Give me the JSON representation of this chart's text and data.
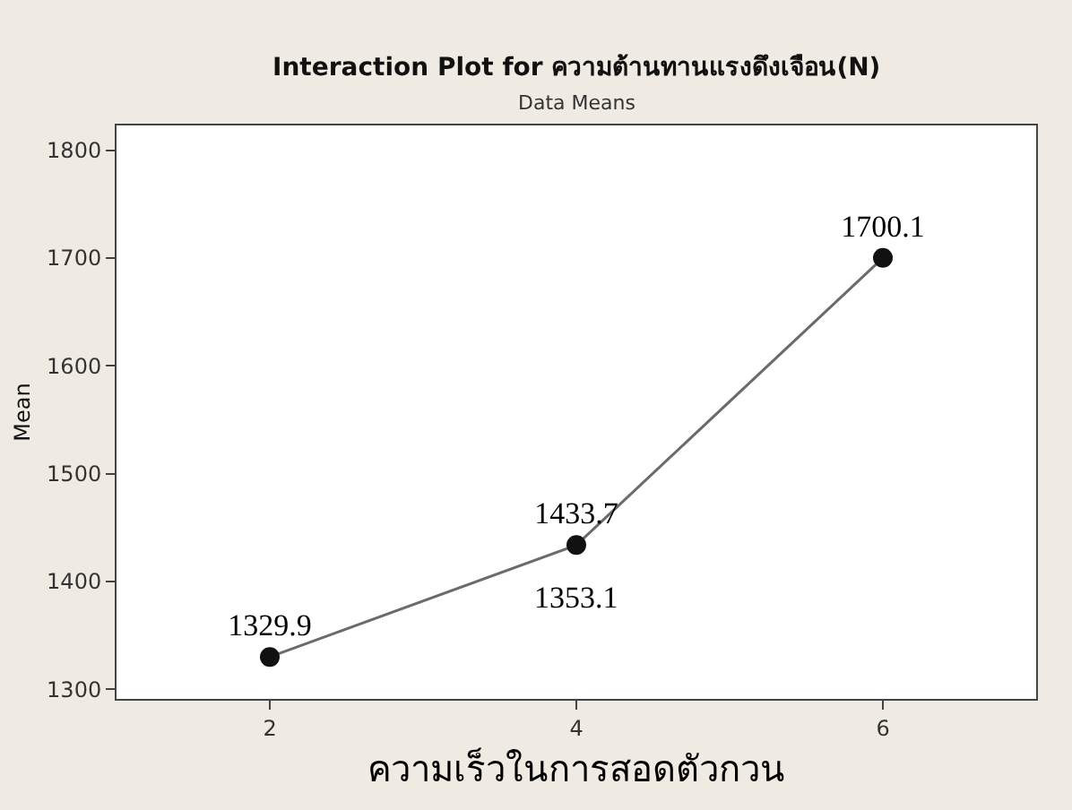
{
  "chart_data": {
    "type": "line",
    "title": "Interaction Plot for ความต้านทานแรงดึงเจือน(N)",
    "subtitle": "Data Means",
    "xlabel": "ความเร็วในการสอดตัวกวน",
    "ylabel": "Mean",
    "x": [
      2,
      4,
      6
    ],
    "series": [
      {
        "color": "#6b6b6b",
        "values": [
          1329.9,
          1433.7,
          1700.1
        ]
      }
    ],
    "data_labels": true,
    "marker": "circle",
    "line_style": "solid",
    "legend": false,
    "annotations": [
      "1353.1"
    ],
    "xlim": [
      1,
      7
    ],
    "xticks": [
      2,
      4,
      6
    ],
    "ylim": [
      1291,
      1823
    ],
    "yticks": [
      1300,
      1400,
      1500,
      1600,
      1700,
      1800
    ]
  }
}
